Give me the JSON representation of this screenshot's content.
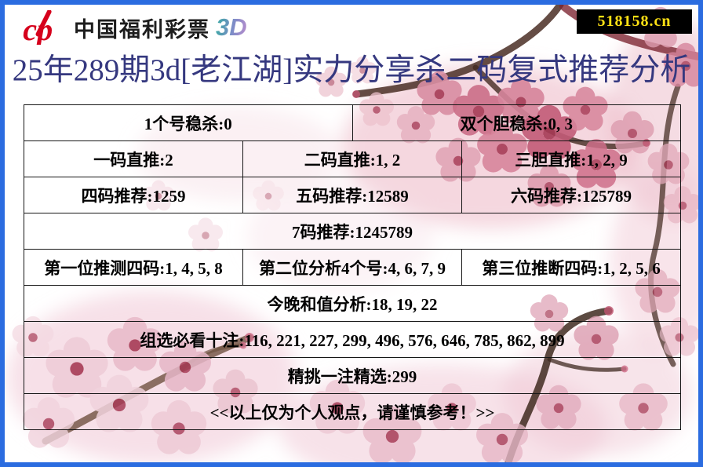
{
  "site": {
    "badge": "518158.cn"
  },
  "header": {
    "logo_mark": "cp",
    "logo_text": "中国福利彩票",
    "logo_suffix": "3D"
  },
  "title": "25年289期3d[老江湖]实力分享杀二码复式推荐分析",
  "board": {
    "rows": [
      [
        "1个号稳杀:0",
        "双个胆稳杀:0, 3"
      ],
      [
        "一码直推:2",
        "二码直推:1, 2",
        "三胆直推:1, 2, 9"
      ],
      [
        "四码推荐:1259",
        "五码推荐:12589",
        "六码推荐:125789"
      ],
      [
        "7码推荐:1245789"
      ],
      [
        "第一位推测四码:1, 4, 5, 8",
        "第二位分析4个号:4, 6, 7, 9",
        "第三位推断四码:1, 2, 5, 6"
      ],
      [
        "今晚和值分析:18, 19, 22"
      ],
      [
        "组选必看十注:116, 221, 227, 299, 496, 576, 646, 785, 862, 899"
      ],
      [
        "精挑一注精选:299"
      ],
      [
        "<<以上仅为个人观点，请谨慎参考！>>"
      ]
    ]
  },
  "colors": {
    "frame_border": "#2b6ce0",
    "badge_bg": "#000000",
    "badge_text": "#ffe114",
    "title_text": "#35387f",
    "logo_red": "#d6001c",
    "table_border": "#161616"
  }
}
